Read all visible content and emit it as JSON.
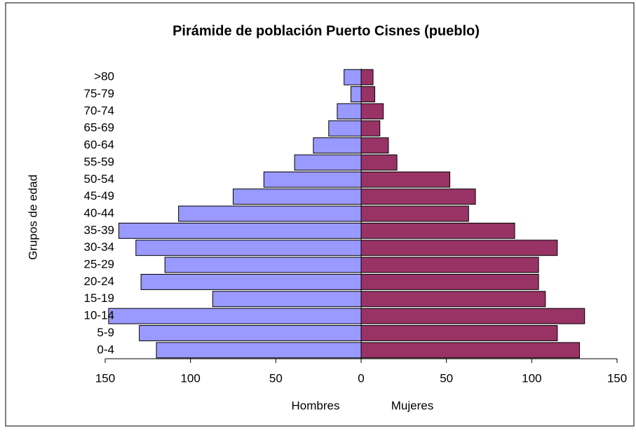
{
  "chart_data": {
    "type": "bar",
    "orientation": "horizontal",
    "title": "Pirámide de población Puerto Cisnes (pueblo)",
    "y_label": "Grupos de edad",
    "categories": [
      "0-4",
      "5-9",
      "10-14",
      "15-19",
      "20-24",
      "25-29",
      "30-34",
      "35-39",
      "40-44",
      "45-49",
      "50-54",
      "55-59",
      "60-64",
      "65-69",
      "70-74",
      "75-79",
      ">80"
    ],
    "series": [
      {
        "name": "Hombres",
        "color": "#9999ff",
        "values": [
          -120,
          -130,
          -148,
          -87,
          -129,
          -115,
          -132,
          -142,
          -107,
          -75,
          -57,
          -39,
          -28,
          -19,
          -14,
          -6,
          -10
        ]
      },
      {
        "name": "Mujeres",
        "color": "#993366",
        "values": [
          128,
          115,
          131,
          108,
          104,
          104,
          115,
          90,
          63,
          67,
          52,
          21,
          16,
          11,
          13,
          8,
          7
        ]
      }
    ],
    "xlim": [
      -150,
      150
    ],
    "xticks": [
      {
        "value": -150,
        "label": "150"
      },
      {
        "value": -100,
        "label": "100"
      },
      {
        "value": -50,
        "label": "50"
      },
      0,
      50,
      100,
      150
    ]
  }
}
